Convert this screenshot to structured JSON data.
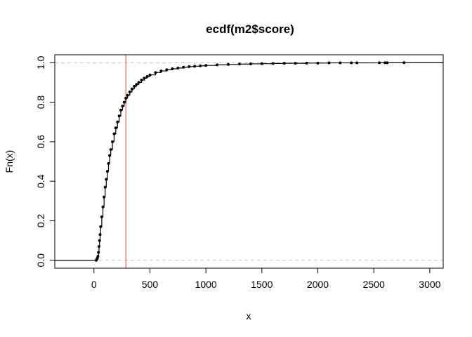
{
  "chart_data": {
    "type": "scatter",
    "title": "ecdf(m2$score)",
    "xlabel": "x",
    "ylabel": "Fn(x)",
    "xlim": [
      -350,
      3120
    ],
    "ylim": [
      -0.04,
      1.04
    ],
    "x_ticks": [
      0,
      500,
      1000,
      1500,
      2000,
      2500,
      3000
    ],
    "x_tick_labels": [
      "0",
      "500",
      "1000",
      "1500",
      "2000",
      "2500",
      "3000"
    ],
    "y_ticks": [
      0.0,
      0.2,
      0.4,
      0.6,
      0.8,
      1.0
    ],
    "y_tick_labels": [
      "0.0",
      "0.2",
      "0.4",
      "0.6",
      "0.8",
      "1.0"
    ],
    "grid": false,
    "reference_lines": {
      "horizontal": [
        0,
        1
      ],
      "horizontal_style": "dashed",
      "horizontal_color": "#c0c0c0",
      "vertical_x": 285,
      "vertical_color": "#e8413d"
    },
    "series": [
      {
        "x": [
          20,
          25,
          30,
          35,
          40,
          45,
          50,
          55,
          60,
          70,
          80,
          90,
          100,
          110,
          120,
          130,
          140,
          150,
          165,
          180,
          195,
          210,
          225,
          240,
          255,
          270,
          285,
          300,
          320,
          340,
          360,
          380,
          400,
          425,
          450,
          475,
          500,
          550,
          600,
          650,
          700,
          750,
          800,
          850,
          900,
          950,
          1000,
          1100,
          1200,
          1300,
          1400,
          1500,
          1600,
          1700,
          1800,
          1900,
          2000,
          2100,
          2200,
          2300,
          2350,
          2550,
          2600,
          2620,
          2770
        ],
        "y": [
          0.0,
          0.005,
          0.01,
          0.02,
          0.04,
          0.07,
          0.1,
          0.13,
          0.17,
          0.22,
          0.27,
          0.32,
          0.37,
          0.41,
          0.45,
          0.49,
          0.53,
          0.56,
          0.6,
          0.64,
          0.67,
          0.7,
          0.73,
          0.76,
          0.78,
          0.8,
          0.82,
          0.835,
          0.852,
          0.867,
          0.88,
          0.89,
          0.9,
          0.912,
          0.922,
          0.93,
          0.938,
          0.95,
          0.958,
          0.964,
          0.969,
          0.973,
          0.977,
          0.98,
          0.982,
          0.984,
          0.986,
          0.989,
          0.991,
          0.993,
          0.994,
          0.995,
          0.996,
          0.997,
          0.997,
          0.998,
          0.998,
          0.999,
          0.999,
          0.999,
          0.999,
          0.9995,
          0.9995,
          0.9995,
          1.0
        ]
      }
    ]
  }
}
